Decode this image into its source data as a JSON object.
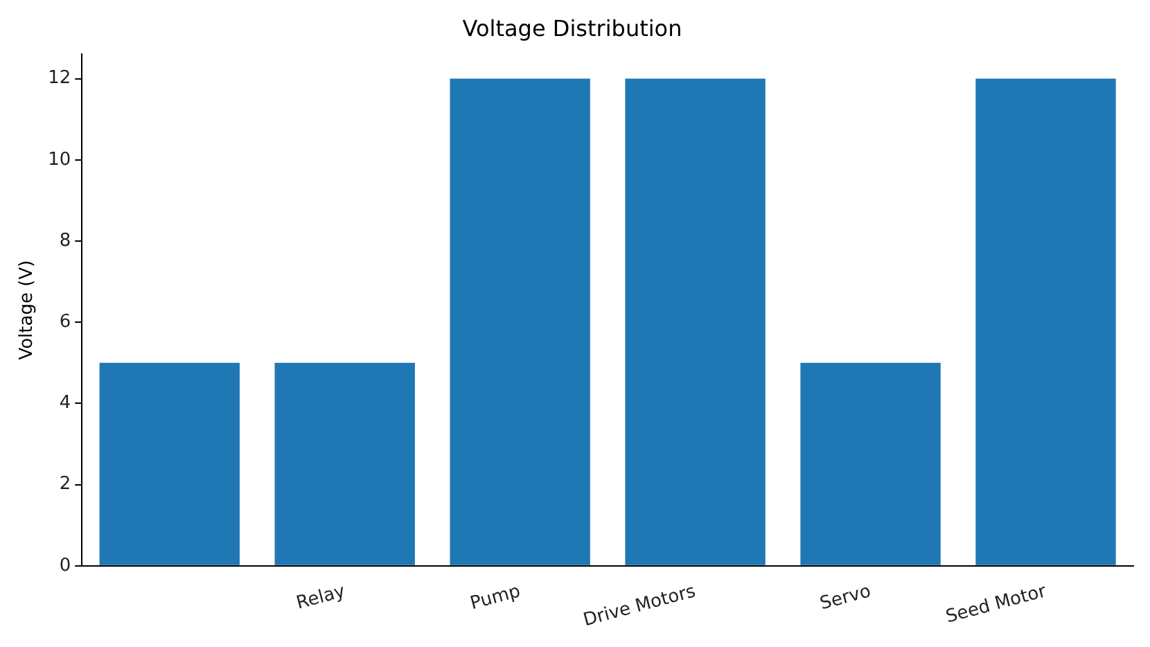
{
  "chart_data": {
    "type": "bar",
    "title": "Voltage Distribution",
    "ylabel": "Voltage (V)",
    "categories": [
      null,
      "Relay",
      "Pump",
      "Drive Motors",
      "Servo",
      "Seed Motor"
    ],
    "values": [
      5,
      5,
      12,
      12,
      5,
      12
    ],
    "color": "#1f77b4",
    "ylim": [
      0,
      12.6
    ],
    "yticks": [
      0,
      2,
      4,
      6,
      8,
      10,
      12
    ],
    "grid": false,
    "legend": false
  }
}
